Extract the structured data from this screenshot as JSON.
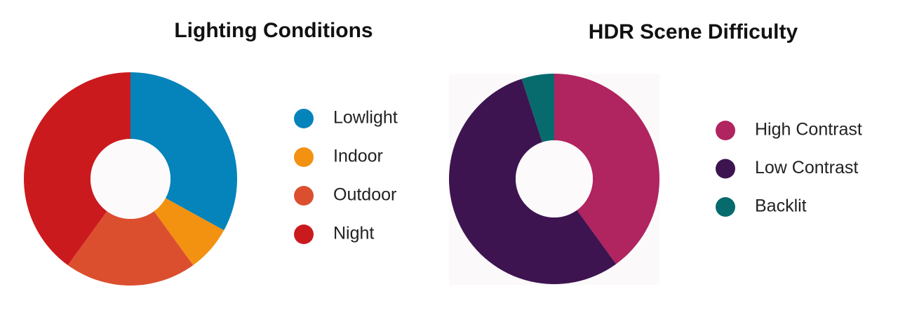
{
  "chart_data": [
    {
      "type": "donut",
      "title": "Lighting Conditions",
      "categories": [
        "Lowlight",
        "Indoor",
        "Outdoor",
        "Night"
      ],
      "values": [
        33,
        7,
        20,
        40
      ],
      "colors": [
        "#0583bb",
        "#f39110",
        "#db4f2f",
        "#cb1a1e"
      ]
    },
    {
      "type": "donut",
      "title": "HDR Scene Difficulty",
      "categories": [
        "High Contrast",
        "Low Contrast",
        "Backlit"
      ],
      "values": [
        40,
        55,
        5
      ],
      "colors": [
        "#b0245f",
        "#3d1450",
        "#076b6e"
      ]
    }
  ]
}
